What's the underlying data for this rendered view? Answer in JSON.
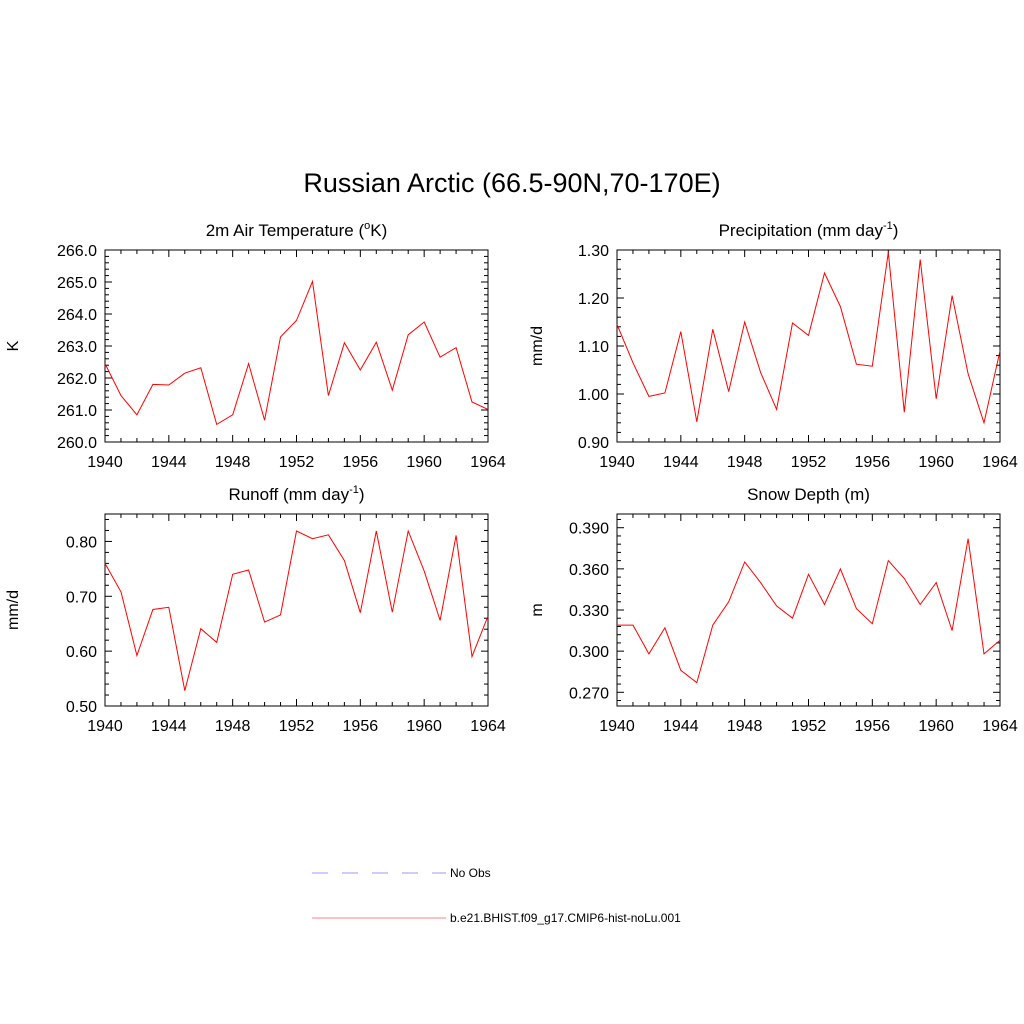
{
  "title": "Russian Arctic (66.5-90N,70-170E)",
  "legend": {
    "items": [
      {
        "label": "No Obs",
        "color": "#9999ff",
        "dash": true
      },
      {
        "label": "b.e21.BHIST.f09_g17.CMIP6-hist-noLu.001",
        "color": "#ff8080",
        "dash": false
      }
    ]
  },
  "chart_data": [
    {
      "type": "line",
      "title": "2m Air Temperature (",
      "title_sup": "o",
      "title_tail": "K)",
      "ylabel": "K",
      "xlim": [
        1940,
        1964
      ],
      "ylim": [
        260.0,
        266.0
      ],
      "xticks": [
        1940,
        1944,
        1948,
        1952,
        1956,
        1960,
        1964
      ],
      "yticks": [
        "260.0",
        "261.0",
        "262.0",
        "263.0",
        "264.0",
        "265.0",
        "266.0"
      ],
      "series": [
        {
          "color": "#ff0000",
          "x": [
            1940,
            1941,
            1942,
            1943,
            1944,
            1945,
            1946,
            1947,
            1948,
            1949,
            1950,
            1951,
            1952,
            1953,
            1954,
            1955,
            1956,
            1957,
            1958,
            1959,
            1960,
            1961,
            1962,
            1963,
            1964
          ],
          "y": [
            262.45,
            261.45,
            260.85,
            261.8,
            261.78,
            262.15,
            262.32,
            260.55,
            260.85,
            262.45,
            260.68,
            263.28,
            263.8,
            265.02,
            261.45,
            263.1,
            262.25,
            263.12,
            261.62,
            263.35,
            263.75,
            262.65,
            262.95,
            261.25,
            261.02
          ]
        }
      ]
    },
    {
      "type": "line",
      "title": "Precipitation (mm day",
      "title_sup": "-1",
      "title_tail": ")",
      "ylabel": "mm/d",
      "xlim": [
        1940,
        1964
      ],
      "ylim": [
        0.9,
        1.3
      ],
      "xticks": [
        1940,
        1944,
        1948,
        1952,
        1956,
        1960,
        1964
      ],
      "yticks": [
        "0.90",
        "1.00",
        "1.10",
        "1.20",
        "1.30"
      ],
      "series": [
        {
          "color": "#ff0000",
          "x": [
            1940,
            1941,
            1942,
            1943,
            1944,
            1945,
            1946,
            1947,
            1948,
            1949,
            1950,
            1951,
            1952,
            1953,
            1954,
            1955,
            1956,
            1957,
            1958,
            1959,
            1960,
            1961,
            1962,
            1963,
            1964
          ],
          "y": [
            1.145,
            1.065,
            0.995,
            1.002,
            1.13,
            0.942,
            1.135,
            1.005,
            1.15,
            1.045,
            0.968,
            1.148,
            1.122,
            1.252,
            1.182,
            1.062,
            1.058,
            1.295,
            0.962,
            1.28,
            0.99,
            1.205,
            1.042,
            0.94,
            1.09
          ]
        }
      ]
    },
    {
      "type": "line",
      "title": "Runoff (mm day",
      "title_sup": "-1",
      "title_tail": ")",
      "ylabel": "mm/d",
      "xlim": [
        1940,
        1964
      ],
      "ylim": [
        0.5,
        0.85
      ],
      "xticks": [
        1940,
        1944,
        1948,
        1952,
        1956,
        1960,
        1964
      ],
      "yticks": [
        "0.50",
        "0.60",
        "0.70",
        "0.80"
      ],
      "series": [
        {
          "color": "#ff0000",
          "x": [
            1940,
            1941,
            1942,
            1943,
            1944,
            1945,
            1946,
            1947,
            1948,
            1949,
            1950,
            1951,
            1952,
            1953,
            1954,
            1955,
            1956,
            1957,
            1958,
            1959,
            1960,
            1961,
            1962,
            1963,
            1964
          ],
          "y": [
            0.76,
            0.708,
            0.592,
            0.676,
            0.68,
            0.528,
            0.641,
            0.616,
            0.74,
            0.748,
            0.653,
            0.666,
            0.819,
            0.805,
            0.812,
            0.765,
            0.67,
            0.819,
            0.671,
            0.819,
            0.746,
            0.656,
            0.811,
            0.59,
            0.664
          ]
        }
      ]
    },
    {
      "type": "line",
      "title": "Snow Depth (m)",
      "title_sup": "",
      "title_tail": "",
      "ylabel": "m",
      "xlim": [
        1940,
        1964
      ],
      "ylim": [
        0.26,
        0.4
      ],
      "xticks": [
        1940,
        1944,
        1948,
        1952,
        1956,
        1960,
        1964
      ],
      "yticks": [
        "0.270",
        "0.300",
        "0.330",
        "0.360",
        "0.390"
      ],
      "series": [
        {
          "color": "#ff0000",
          "x": [
            1940,
            1941,
            1942,
            1943,
            1944,
            1945,
            1946,
            1947,
            1948,
            1949,
            1950,
            1951,
            1952,
            1953,
            1954,
            1955,
            1956,
            1957,
            1958,
            1959,
            1960,
            1961,
            1962,
            1963,
            1964
          ],
          "y": [
            0.319,
            0.319,
            0.298,
            0.317,
            0.286,
            0.277,
            0.319,
            0.336,
            0.365,
            0.35,
            0.333,
            0.324,
            0.356,
            0.334,
            0.36,
            0.331,
            0.32,
            0.366,
            0.353,
            0.334,
            0.35,
            0.315,
            0.382,
            0.298,
            0.308
          ]
        }
      ]
    }
  ]
}
